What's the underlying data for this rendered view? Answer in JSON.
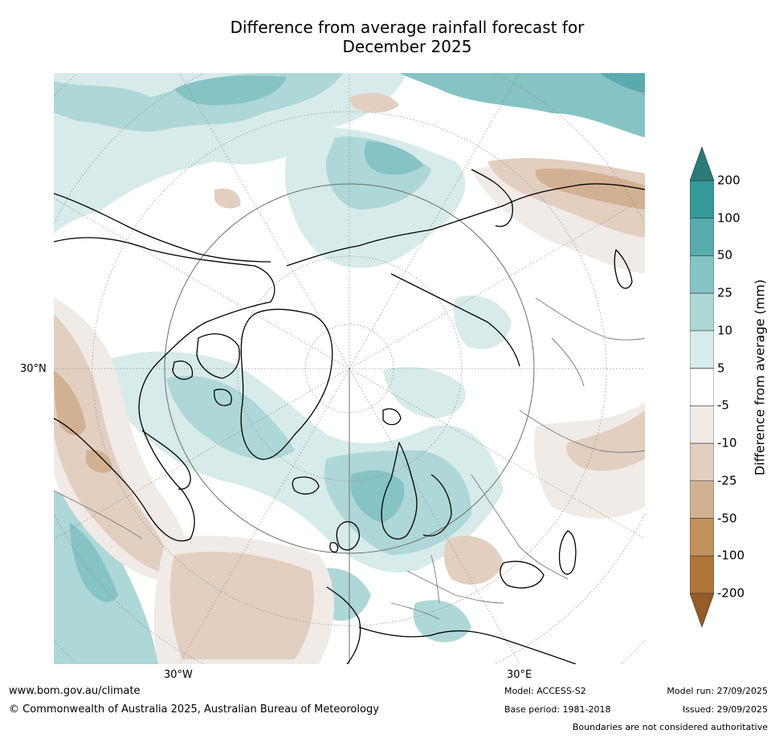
{
  "title": {
    "line1": "Difference from average rainfall forecast for",
    "line2": "December 2025"
  },
  "map": {
    "latitude_labels": [
      "30°N"
    ],
    "longitude_labels": [
      "30°W",
      "30°E"
    ]
  },
  "legend": {
    "title": "Difference from average (mm)",
    "ticks": [
      "200",
      "100",
      "50",
      "25",
      "10",
      "5",
      "-5",
      "-10",
      "-25",
      "-50",
      "-100",
      "-200"
    ],
    "colors": [
      "#2b7b7a",
      "#33999a",
      "#5aabad",
      "#85c3c4",
      "#aed7d7",
      "#d6ebea",
      "#ffffff",
      "#f0ebe6",
      "#e2cfc0",
      "#d2b192",
      "#c0915e",
      "#b0763a",
      "#945c26"
    ]
  },
  "footer": {
    "website": "www.bom.gov.au/climate",
    "copyright": "© Commonwealth of Australia 2025, Australian Bureau of Meteorology",
    "model": "Model: ACCESS-S2",
    "base_period": "Base period: 1981-2018",
    "model_run": "Model run: 27/09/2025",
    "issued": "Issued: 29/09/2025",
    "disclaimer": "Boundaries are not considered authoritative"
  }
}
